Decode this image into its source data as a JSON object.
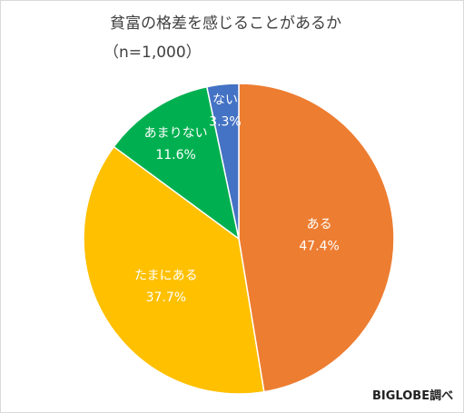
{
  "chart_data": {
    "type": "pie",
    "title": "貧富の格差を感じることがあるか",
    "subtitle": "（n=1,000）",
    "source": "BIGLOBE調べ",
    "slices": [
      {
        "label": "ある",
        "value": 47.4,
        "value_text": "47.4%",
        "color": "#ED7D31"
      },
      {
        "label": "たまにある",
        "value": 37.7,
        "value_text": "37.7%",
        "color": "#FFC000"
      },
      {
        "label": "あまりない",
        "value": 11.6,
        "value_text": "11.6%",
        "color": "#00B050"
      },
      {
        "label": "ない",
        "value": 3.3,
        "value_text": "3.3%",
        "color": "#4472C4"
      }
    ]
  }
}
